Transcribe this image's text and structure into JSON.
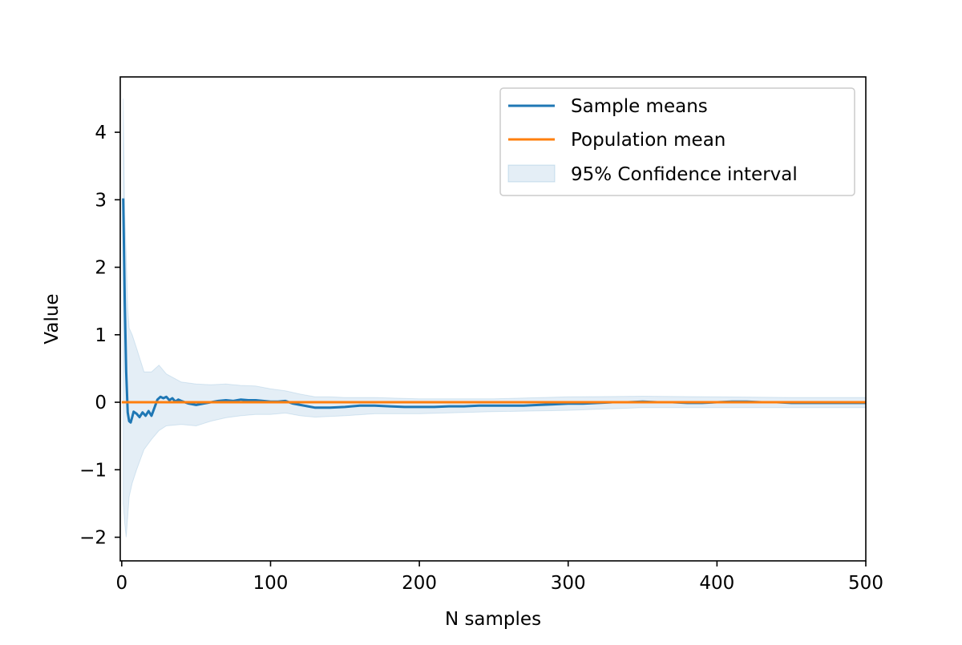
{
  "chart_data": {
    "type": "line",
    "title": "",
    "xlabel": "N samples",
    "ylabel": "Value",
    "xlim": [
      -1,
      500
    ],
    "ylim": [
      -2.35,
      4.82
    ],
    "x_ticks": [
      0,
      100,
      200,
      300,
      400,
      500
    ],
    "y_ticks": [
      -2,
      -1,
      0,
      1,
      2,
      3,
      4
    ],
    "y_tick_labels": [
      "−2",
      "−1",
      "0",
      "1",
      "2",
      "3",
      "4"
    ],
    "grid": false,
    "legend_position": "top-right",
    "colors": {
      "sample_means": "#1f77b4",
      "population_mean": "#ff7f0e",
      "ci_fill": "#1f77b4"
    },
    "legend": [
      "Sample means",
      "Population mean",
      "95% Confidence interval"
    ],
    "series": [
      {
        "name": "Sample means",
        "kind": "line",
        "points": [
          [
            1,
            3.02
          ],
          [
            2,
            1.5
          ],
          [
            3,
            0.45
          ],
          [
            4,
            -0.15
          ],
          [
            5,
            -0.28
          ],
          [
            6,
            -0.3
          ],
          [
            7,
            -0.22
          ],
          [
            8,
            -0.14
          ],
          [
            10,
            -0.17
          ],
          [
            12,
            -0.22
          ],
          [
            14,
            -0.15
          ],
          [
            16,
            -0.2
          ],
          [
            18,
            -0.13
          ],
          [
            20,
            -0.2
          ],
          [
            22,
            -0.08
          ],
          [
            24,
            0.04
          ],
          [
            26,
            0.08
          ],
          [
            28,
            0.06
          ],
          [
            30,
            0.08
          ],
          [
            32,
            0.03
          ],
          [
            34,
            0.06
          ],
          [
            36,
            0.01
          ],
          [
            38,
            0.04
          ],
          [
            40,
            0.02
          ],
          [
            45,
            -0.02
          ],
          [
            50,
            -0.04
          ],
          [
            55,
            -0.02
          ],
          [
            60,
            0.0
          ],
          [
            65,
            0.02
          ],
          [
            70,
            0.03
          ],
          [
            75,
            0.02
          ],
          [
            80,
            0.04
          ],
          [
            85,
            0.03
          ],
          [
            90,
            0.03
          ],
          [
            95,
            0.02
          ],
          [
            100,
            0.01
          ],
          [
            105,
            0.01
          ],
          [
            110,
            0.02
          ],
          [
            115,
            -0.02
          ],
          [
            120,
            -0.04
          ],
          [
            130,
            -0.08
          ],
          [
            140,
            -0.08
          ],
          [
            150,
            -0.07
          ],
          [
            160,
            -0.05
          ],
          [
            170,
            -0.05
          ],
          [
            180,
            -0.06
          ],
          [
            190,
            -0.07
          ],
          [
            200,
            -0.07
          ],
          [
            210,
            -0.07
          ],
          [
            220,
            -0.06
          ],
          [
            230,
            -0.06
          ],
          [
            240,
            -0.05
          ],
          [
            250,
            -0.05
          ],
          [
            260,
            -0.05
          ],
          [
            270,
            -0.05
          ],
          [
            280,
            -0.04
          ],
          [
            290,
            -0.03
          ],
          [
            300,
            -0.02
          ],
          [
            310,
            -0.02
          ],
          [
            320,
            -0.01
          ],
          [
            330,
            0.0
          ],
          [
            340,
            0.0
          ],
          [
            350,
            0.01
          ],
          [
            360,
            0.0
          ],
          [
            370,
            0.0
          ],
          [
            380,
            -0.01
          ],
          [
            390,
            -0.01
          ],
          [
            400,
            0.0
          ],
          [
            410,
            0.01
          ],
          [
            420,
            0.01
          ],
          [
            430,
            0.0
          ],
          [
            440,
            0.0
          ],
          [
            450,
            -0.01
          ],
          [
            460,
            -0.01
          ],
          [
            470,
            -0.01
          ],
          [
            480,
            -0.01
          ],
          [
            490,
            -0.01
          ],
          [
            500,
            -0.01
          ]
        ]
      },
      {
        "name": "Population mean",
        "kind": "line",
        "points": [
          [
            0,
            0
          ],
          [
            500,
            0
          ]
        ]
      },
      {
        "name": "95% Confidence interval",
        "kind": "band",
        "points": [
          [
            1,
            -1.5,
            4.5
          ],
          [
            2,
            -1.8,
            2.8
          ],
          [
            3,
            -2.0,
            2.2
          ],
          [
            4,
            -1.7,
            1.4
          ],
          [
            5,
            -1.4,
            1.1
          ],
          [
            7,
            -1.2,
            1.0
          ],
          [
            10,
            -1.0,
            0.8
          ],
          [
            15,
            -0.7,
            0.45
          ],
          [
            20,
            -0.55,
            0.45
          ],
          [
            25,
            -0.42,
            0.55
          ],
          [
            30,
            -0.35,
            0.42
          ],
          [
            40,
            -0.33,
            0.3
          ],
          [
            50,
            -0.35,
            0.27
          ],
          [
            60,
            -0.28,
            0.26
          ],
          [
            70,
            -0.23,
            0.27
          ],
          [
            80,
            -0.2,
            0.25
          ],
          [
            90,
            -0.18,
            0.24
          ],
          [
            100,
            -0.18,
            0.2
          ],
          [
            110,
            -0.16,
            0.17
          ],
          [
            120,
            -0.2,
            0.12
          ],
          [
            130,
            -0.22,
            0.08
          ],
          [
            140,
            -0.21,
            0.08
          ],
          [
            150,
            -0.2,
            0.07
          ],
          [
            170,
            -0.17,
            0.07
          ],
          [
            200,
            -0.17,
            0.05
          ],
          [
            250,
            -0.14,
            0.05
          ],
          [
            300,
            -0.12,
            0.08
          ],
          [
            350,
            -0.08,
            0.09
          ],
          [
            400,
            -0.08,
            0.08
          ],
          [
            450,
            -0.08,
            0.07
          ],
          [
            500,
            -0.08,
            0.07
          ]
        ]
      }
    ]
  }
}
